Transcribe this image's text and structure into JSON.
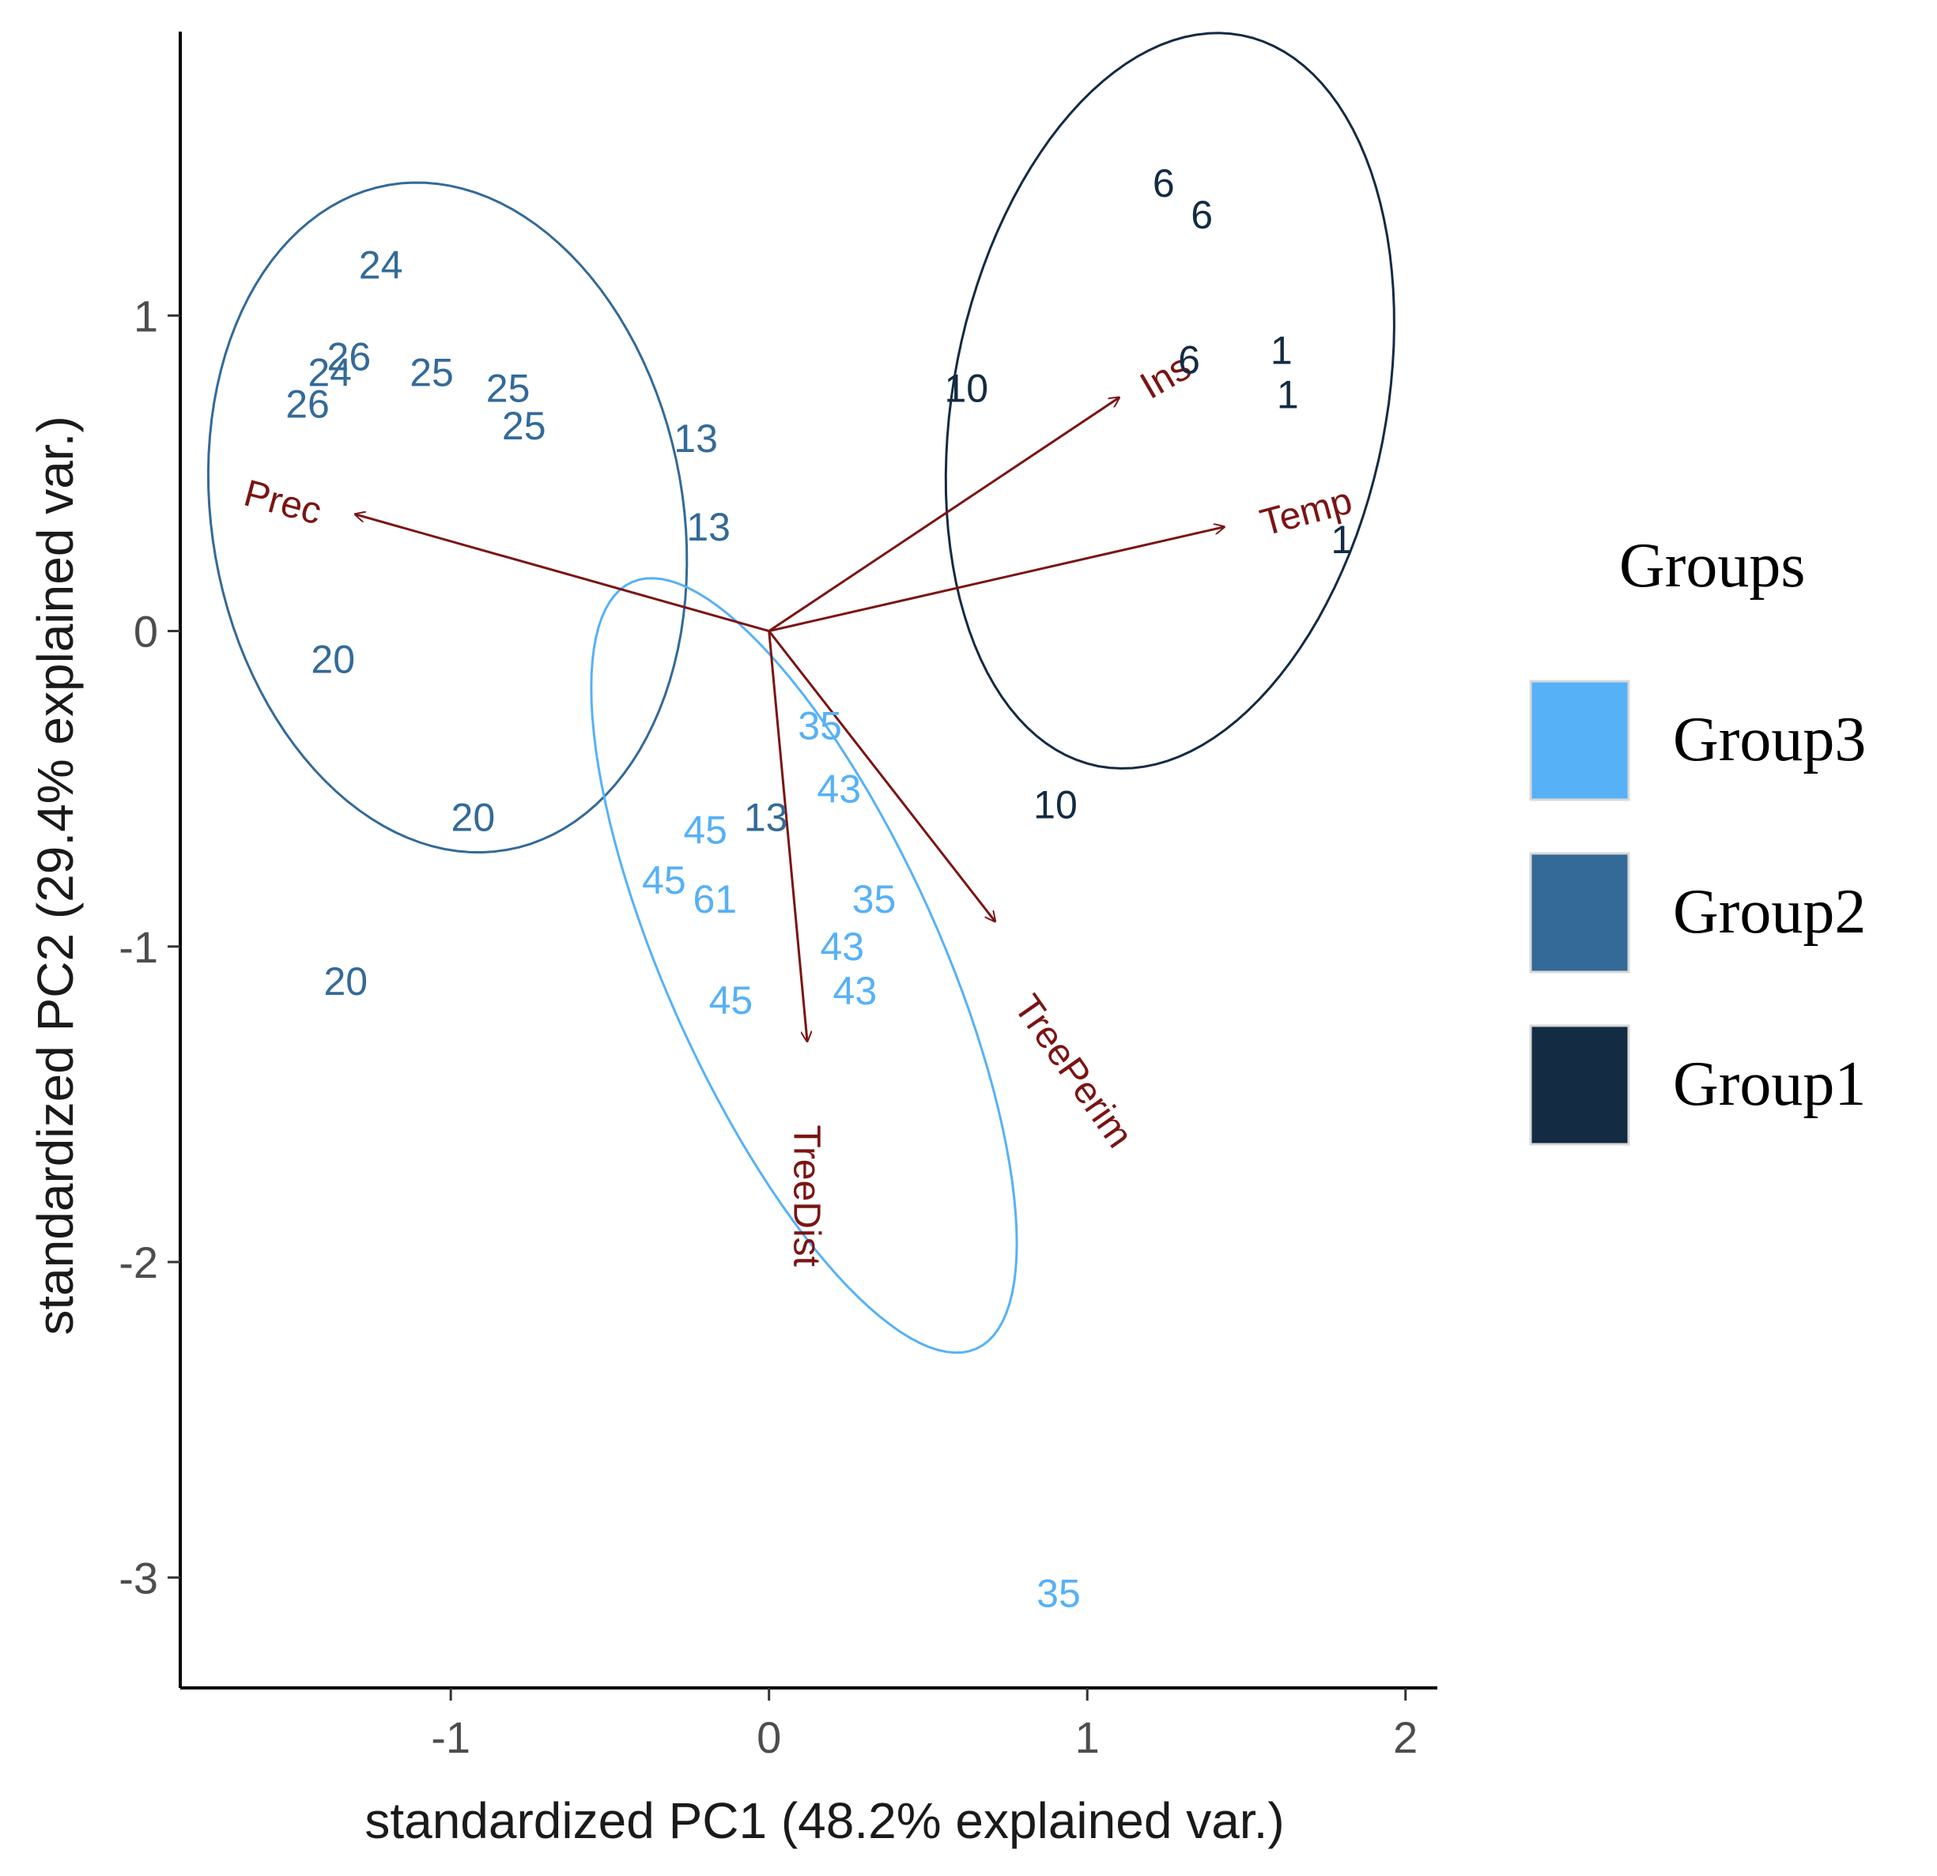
{
  "chart_data": {
    "type": "scatter",
    "title": "",
    "xlabel": "standardized PC1 (48.2% explained var.)",
    "ylabel": "standardized PC2 (29.4% explained var.)",
    "xlim": [
      -1.85,
      2.1
    ],
    "ylim": [
      -3.35,
      1.9
    ],
    "x_ticks": [
      -1,
      0,
      1,
      2
    ],
    "y_ticks": [
      -3,
      -2,
      -1,
      0,
      1
    ],
    "x_tick_labels": [
      "-1",
      "0",
      "1",
      "2"
    ],
    "y_tick_labels": [
      "-3",
      "-2",
      "-1",
      "0",
      "1"
    ],
    "grid": false,
    "legend": {
      "title": "Groups",
      "position": "right",
      "entries": [
        {
          "name": "Group3",
          "color": "#56b1f7"
        },
        {
          "name": "Group2",
          "color": "#336a98"
        },
        {
          "name": "Group1",
          "color": "#132b43"
        }
      ]
    },
    "arrow_color": "#7b1414",
    "series": [
      {
        "name": "Group1",
        "color": "#132b43",
        "points": [
          {
            "x": 1.24,
            "y": 1.41,
            "label": "6"
          },
          {
            "x": 1.36,
            "y": 1.31,
            "label": "6"
          },
          {
            "x": 1.32,
            "y": 0.85,
            "label": "6"
          },
          {
            "x": 1.61,
            "y": 0.88,
            "label": "1"
          },
          {
            "x": 1.63,
            "y": 0.74,
            "label": "1"
          },
          {
            "x": 1.8,
            "y": 0.28,
            "label": "1"
          },
          {
            "x": 0.62,
            "y": 0.76,
            "label": "10"
          },
          {
            "x": 0.9,
            "y": -0.56,
            "label": "10"
          }
        ],
        "ellipse": {
          "cx": 1.26,
          "cy": 0.73,
          "rx": 1.18,
          "ry": 0.68,
          "angle_deg": 79
        }
      },
      {
        "name": "Group2",
        "color": "#336a98",
        "points": [
          {
            "x": -1.22,
            "y": 1.15,
            "label": "24"
          },
          {
            "x": -1.32,
            "y": 0.86,
            "label": "26"
          },
          {
            "x": -1.38,
            "y": 0.81,
            "label": "24"
          },
          {
            "x": -1.45,
            "y": 0.71,
            "label": "26"
          },
          {
            "x": -1.06,
            "y": 0.81,
            "label": "25"
          },
          {
            "x": -0.82,
            "y": 0.76,
            "label": "25"
          },
          {
            "x": -0.77,
            "y": 0.64,
            "label": "25"
          },
          {
            "x": -0.23,
            "y": 0.6,
            "label": "13"
          },
          {
            "x": -0.19,
            "y": 0.32,
            "label": "13"
          },
          {
            "x": -1.37,
            "y": -0.1,
            "label": "20"
          },
          {
            "x": -0.93,
            "y": -0.6,
            "label": "20"
          },
          {
            "x": -1.33,
            "y": -1.12,
            "label": "20"
          },
          {
            "x": -0.01,
            "y": -0.6,
            "label": "13"
          }
        ],
        "ellipse": {
          "cx": -1.01,
          "cy": 0.36,
          "rx": 1.07,
          "ry": 0.74,
          "angle_deg": 100
        }
      },
      {
        "name": "Group3",
        "color": "#56b1f7",
        "points": [
          {
            "x": 0.16,
            "y": -0.31,
            "label": "35"
          },
          {
            "x": 0.22,
            "y": -0.51,
            "label": "43"
          },
          {
            "x": -0.2,
            "y": -0.64,
            "label": "45"
          },
          {
            "x": -0.33,
            "y": -0.8,
            "label": "45"
          },
          {
            "x": -0.17,
            "y": -0.86,
            "label": "61"
          },
          {
            "x": 0.33,
            "y": -0.86,
            "label": "35"
          },
          {
            "x": 0.23,
            "y": -1.01,
            "label": "43"
          },
          {
            "x": 0.27,
            "y": -1.15,
            "label": "43"
          },
          {
            "x": -0.12,
            "y": -1.18,
            "label": "45"
          },
          {
            "x": 0.91,
            "y": -3.06,
            "label": "35"
          }
        ],
        "ellipse": {
          "cx": 0.11,
          "cy": -1.06,
          "rx": 1.33,
          "ry": 0.43,
          "angle_deg": 114
        }
      }
    ],
    "arrows": [
      {
        "name": "Prec",
        "x": -1.3,
        "y": 0.37,
        "label_x": -1.53,
        "label_y": 0.4,
        "label_rotation": 15
      },
      {
        "name": "Ins",
        "x": 1.1,
        "y": 0.74,
        "label_x": 1.25,
        "label_y": 0.8,
        "label_rotation": -30
      },
      {
        "name": "Temp",
        "x": 1.43,
        "y": 0.33,
        "label_x": 1.69,
        "label_y": 0.37,
        "label_rotation": -15
      },
      {
        "name": "TreePerim",
        "x": 0.71,
        "y": -0.92,
        "label_x": 0.95,
        "label_y": -1.4,
        "label_rotation": 55
      },
      {
        "name": "TreeDist",
        "x": 0.12,
        "y": -1.3,
        "label_x": 0.11,
        "label_y": -1.79,
        "label_rotation": 90
      }
    ]
  }
}
